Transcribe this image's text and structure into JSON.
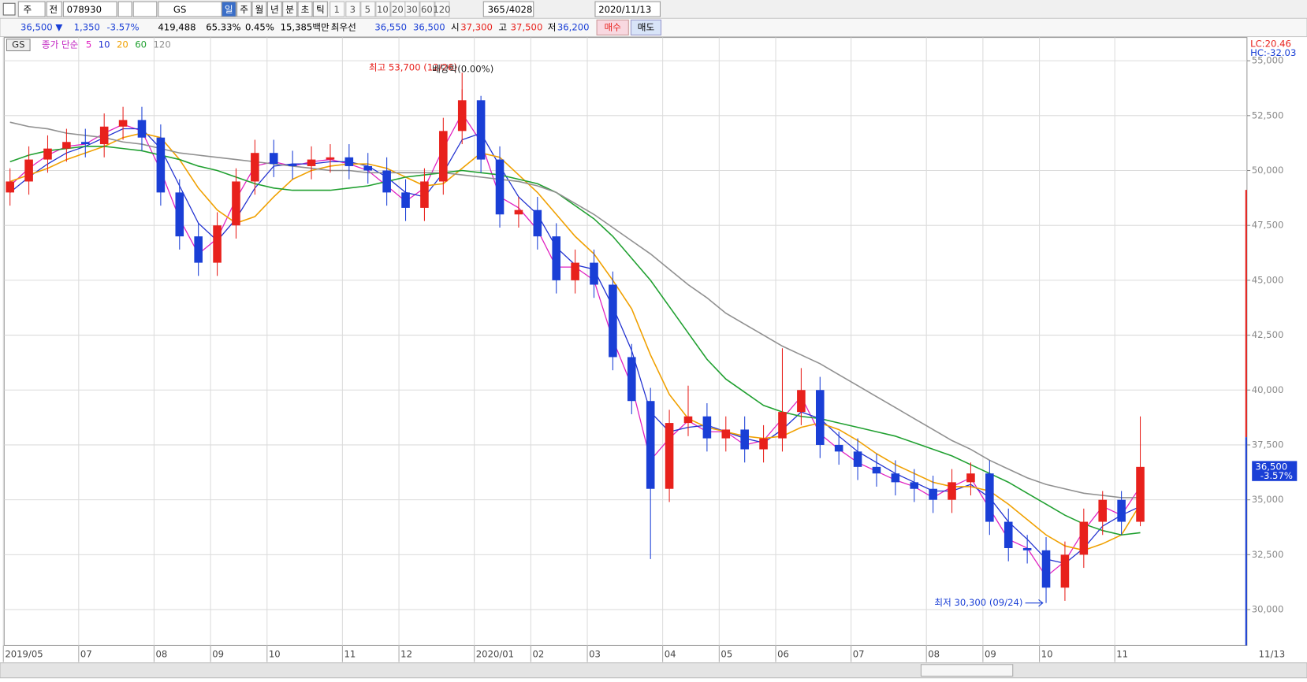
{
  "toolbar": {
    "market": "주",
    "type": "전",
    "code": "078930",
    "name": "GS",
    "periods": [
      "일",
      "주",
      "월",
      "년",
      "분",
      "초",
      "틱"
    ],
    "intervals": [
      "1",
      "3",
      "5",
      "10",
      "20",
      "30",
      "60",
      "120"
    ],
    "count": "365",
    "total": "/4028",
    "date": "2020/11/13"
  },
  "quote_bar": {
    "price": "36,500 ▼",
    "change": "1,350",
    "change_rate": "-3.57%",
    "volume": "419,488",
    "volume_ratio": "65.33%",
    "turnover": "0.45%",
    "amount": "15,385백만",
    "best_label": "최우선",
    "best_ask": "36,550",
    "best_bid": "36,500",
    "open_label": "시",
    "open": "37,300",
    "high_label": "고",
    "high": "37,500",
    "low_label": "저",
    "low": "36,200",
    "buy": "매수",
    "sell": "매도"
  },
  "chart_data": {
    "type": "candlestick",
    "legend_name": "GS",
    "legend_label": "종가 단순",
    "up_color": "#e8211c",
    "down_color": "#1a3fd6",
    "grid": true,
    "categories": [
      "2019/05",
      null,
      null,
      null,
      "07",
      null,
      null,
      null,
      "08",
      null,
      null,
      "09",
      null,
      null,
      "10",
      null,
      null,
      null,
      "11",
      null,
      null,
      "12",
      null,
      null,
      null,
      "2020/01",
      null,
      null,
      "02",
      null,
      null,
      "03",
      null,
      null,
      null,
      "04",
      null,
      null,
      "05",
      null,
      null,
      "06",
      null,
      null,
      null,
      "07",
      null,
      null,
      null,
      "08",
      null,
      null,
      "09",
      null,
      null,
      "10",
      null,
      null,
      null,
      "11",
      null
    ],
    "x_end_label": "11/13",
    "open": [
      49000,
      49500,
      50500,
      51000,
      51300,
      51200,
      52000,
      52300,
      51500,
      49000,
      47000,
      45800,
      47500,
      49500,
      50800,
      50300,
      50200,
      50500,
      50600,
      50200,
      50000,
      49000,
      48300,
      49500,
      51800,
      53200,
      50500,
      48000,
      48200,
      47000,
      45000,
      45800,
      44800,
      41500,
      39500,
      35500,
      38500,
      38800,
      37800,
      38200,
      37300,
      37800,
      39000,
      40000,
      37500,
      37200,
      36500,
      36200,
      35800,
      35500,
      35000,
      35800,
      36200,
      34000,
      32800,
      32700,
      31000,
      32500,
      34000,
      35000,
      34000
    ],
    "high": [
      50100,
      51100,
      51600,
      51900,
      51900,
      52600,
      52900,
      52900,
      52100,
      49600,
      47600,
      48100,
      50100,
      51400,
      51400,
      50900,
      51100,
      51200,
      51200,
      50800,
      50600,
      49600,
      50100,
      52400,
      53700,
      53400,
      51100,
      48800,
      48800,
      47600,
      46400,
      46400,
      45400,
      42100,
      40100,
      39100,
      40200,
      39400,
      38800,
      38800,
      38400,
      41900,
      41000,
      40600,
      38100,
      37800,
      37100,
      36800,
      36400,
      36100,
      36400,
      36700,
      36800,
      34600,
      33400,
      33300,
      33100,
      34600,
      35400,
      35400,
      38800
    ],
    "low": [
      48400,
      48900,
      49900,
      50400,
      50600,
      50600,
      51400,
      50900,
      48400,
      46400,
      45200,
      45200,
      46900,
      48900,
      49700,
      49600,
      49600,
      49900,
      49600,
      49400,
      48400,
      47700,
      47700,
      48900,
      51200,
      49900,
      47400,
      47400,
      46400,
      44400,
      44400,
      44200,
      40900,
      38900,
      32300,
      34900,
      37900,
      37200,
      37200,
      36700,
      36700,
      37200,
      38400,
      36900,
      36600,
      35900,
      35600,
      35200,
      34900,
      34400,
      34400,
      35200,
      33400,
      32200,
      32100,
      30300,
      30400,
      31900,
      33400,
      33400,
      33800
    ],
    "close": [
      49500,
      50500,
      51000,
      51300,
      51200,
      52000,
      52300,
      51500,
      49000,
      47000,
      45800,
      47500,
      49500,
      50800,
      50300,
      50200,
      50500,
      50600,
      50200,
      50000,
      49000,
      48300,
      49500,
      51800,
      53200,
      50500,
      48000,
      48200,
      47000,
      45000,
      45800,
      44800,
      41500,
      39500,
      35500,
      38500,
      38800,
      37800,
      38200,
      37300,
      37800,
      39000,
      40000,
      37500,
      37200,
      36500,
      36200,
      35800,
      35500,
      35000,
      35800,
      36200,
      34000,
      32800,
      32700,
      31000,
      32500,
      34000,
      35000,
      34000,
      36500
    ],
    "series": [
      {
        "name": "5",
        "color": "#e020c0",
        "values": [
          49300,
          50100,
          50700,
          51100,
          51200,
          51700,
          52100,
          51800,
          50000,
          47800,
          46200,
          46900,
          48700,
          50200,
          50400,
          50200,
          50400,
          50500,
          50300,
          50000,
          49300,
          48600,
          49200,
          51000,
          52600,
          51300,
          48800,
          48300,
          47300,
          45600,
          45600,
          45000,
          42300,
          40200,
          36800,
          37800,
          38600,
          38100,
          38100,
          37500,
          37700,
          38700,
          39700,
          38000,
          37300,
          36700,
          36300,
          35900,
          35600,
          35100,
          35600,
          36000,
          34600,
          33200,
          32800,
          31500,
          32200,
          33600,
          34700,
          34300,
          35600
        ]
      },
      {
        "name": "10",
        "color": "#2030d0",
        "values": [
          49000,
          49700,
          50300,
          50800,
          51100,
          51500,
          51900,
          51900,
          51000,
          49300,
          47600,
          46800,
          47800,
          49200,
          50200,
          50300,
          50300,
          50400,
          50400,
          50200,
          49700,
          49000,
          48800,
          49900,
          51400,
          51700,
          50200,
          48800,
          48000,
          46500,
          45700,
          45500,
          43800,
          41800,
          39000,
          38100,
          38300,
          38400,
          38100,
          37800,
          37600,
          38200,
          39000,
          38700,
          37900,
          37200,
          36700,
          36200,
          35800,
          35400,
          35400,
          35700,
          35100,
          34000,
          33200,
          32300,
          32100,
          32800,
          33800,
          34300,
          34700
        ]
      },
      {
        "name": "20",
        "color": "#f0a000",
        "values": [
          49500,
          49800,
          50100,
          50500,
          50800,
          51100,
          51500,
          51700,
          51500,
          50500,
          49200,
          48200,
          47600,
          47900,
          48800,
          49600,
          50000,
          50200,
          50300,
          50300,
          50100,
          49700,
          49300,
          49400,
          50100,
          50800,
          50600,
          49800,
          49000,
          48000,
          47000,
          46200,
          45000,
          43700,
          41600,
          39800,
          38700,
          38300,
          38100,
          37900,
          37800,
          37900,
          38300,
          38500,
          38200,
          37700,
          37100,
          36600,
          36200,
          35800,
          35600,
          35600,
          35400,
          34800,
          34100,
          33400,
          32900,
          32700,
          33000,
          33400,
          34800
        ]
      },
      {
        "name": "60",
        "color": "#20a030",
        "values": [
          50400,
          50700,
          50900,
          51000,
          51100,
          51100,
          51000,
          50900,
          50700,
          50500,
          50200,
          50000,
          49700,
          49400,
          49200,
          49100,
          49100,
          49100,
          49200,
          49300,
          49500,
          49700,
          49800,
          49900,
          50000,
          49900,
          49800,
          49600,
          49400,
          49000,
          48400,
          47800,
          47000,
          46000,
          45000,
          43800,
          42600,
          41400,
          40500,
          39900,
          39300,
          39000,
          38800,
          38700,
          38500,
          38300,
          38100,
          37900,
          37600,
          37300,
          37000,
          36600,
          36200,
          35800,
          35300,
          34800,
          34300,
          33900,
          33600,
          33400,
          33500
        ]
      },
      {
        "name": "120",
        "color": "#909090",
        "values": [
          52200,
          52000,
          51900,
          51700,
          51600,
          51500,
          51300,
          51200,
          51000,
          50800,
          50700,
          50600,
          50500,
          50400,
          50300,
          50200,
          50100,
          50000,
          50000,
          49900,
          49900,
          49900,
          49900,
          49900,
          49800,
          49700,
          49600,
          49500,
          49300,
          49000,
          48500,
          48000,
          47400,
          46800,
          46200,
          45500,
          44800,
          44200,
          43500,
          43000,
          42500,
          42000,
          41600,
          41200,
          40700,
          40200,
          39700,
          39200,
          38700,
          38200,
          37700,
          37300,
          36800,
          36400,
          36000,
          35700,
          35500,
          35300,
          35200,
          35100,
          35100
        ]
      }
    ],
    "ylim": [
      28370,
      56060
    ],
    "yticks": [
      {
        "value": 30000,
        "label": "30,000"
      },
      {
        "value": 32500,
        "label": "32,500"
      },
      {
        "value": 35000,
        "label": "35,000"
      },
      {
        "value": 37500,
        "label": "37,500"
      },
      {
        "value": 40000,
        "label": "40,000"
      },
      {
        "value": 42500,
        "label": "42,500"
      },
      {
        "value": 45000,
        "label": "45,000"
      },
      {
        "value": 47500,
        "label": "47,500"
      },
      {
        "value": 50000,
        "label": "50,000"
      },
      {
        "value": 52500,
        "label": "52,500"
      },
      {
        "value": 55000,
        "label": "55,000"
      }
    ],
    "annotations": {
      "high": "최고 53,700 (12/26)",
      "low": "최저 30,300 (09/24)",
      "dividend": "배당락(0.00%)"
    },
    "lc_label": "LC:20.46",
    "hc_label": "HC:-32.03",
    "last_price_label": "36,500",
    "last_change_label": "-3.57%"
  }
}
